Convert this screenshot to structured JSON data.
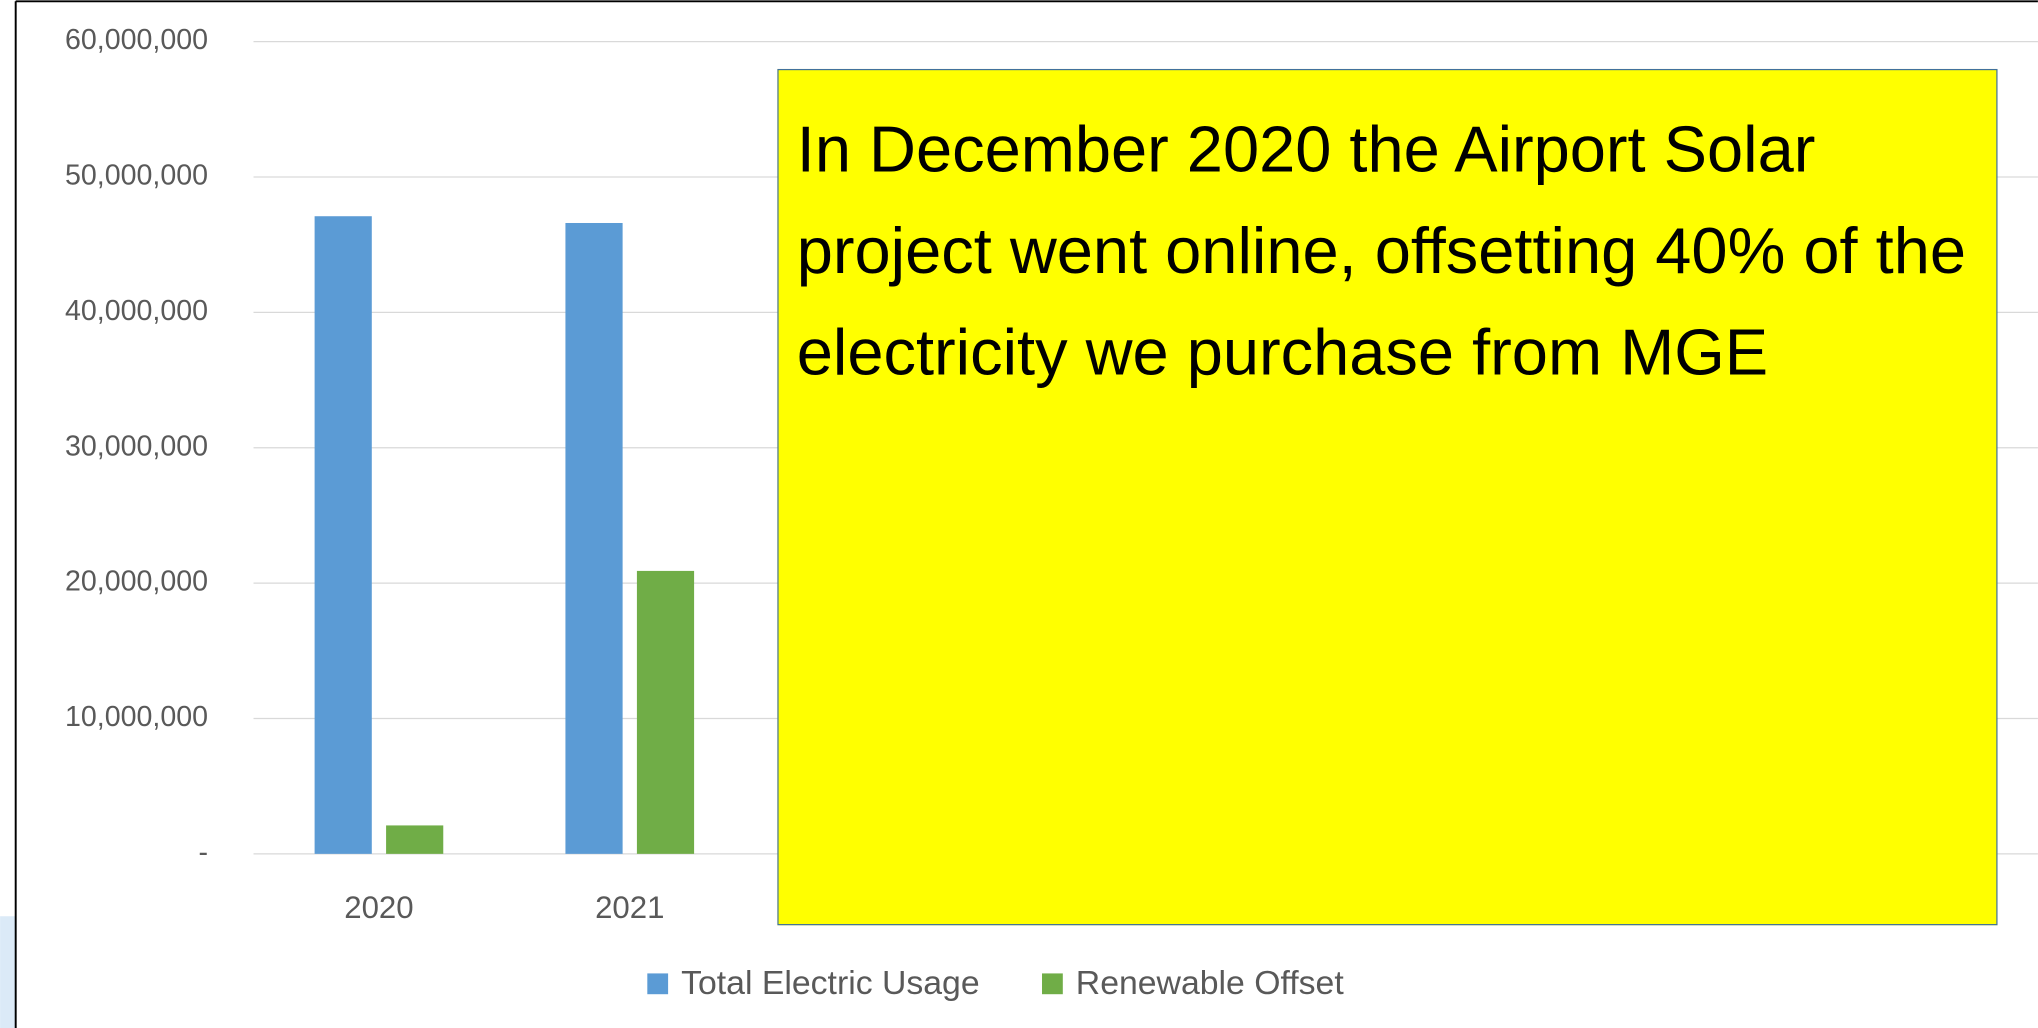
{
  "chart_data": {
    "type": "bar",
    "categories": [
      "2020",
      "2021"
    ],
    "series": [
      {
        "name": "Total Electric Usage",
        "color": "#5b9bd5",
        "values": [
          47100000,
          46600000
        ]
      },
      {
        "name": "Renewable Offset",
        "color": "#70ad47",
        "values": [
          2100000,
          20900000
        ]
      }
    ],
    "ylim": [
      0,
      60000000
    ],
    "yticks": [
      {
        "value": 0,
        "label": "-"
      },
      {
        "value": 10000000,
        "label": "10,000,000"
      },
      {
        "value": 20000000,
        "label": "20,000,000"
      },
      {
        "value": 30000000,
        "label": "30,000,000"
      },
      {
        "value": 40000000,
        "label": "40,000,000"
      },
      {
        "value": 50000000,
        "label": "50,000,000"
      },
      {
        "value": 60000000,
        "label": "60,000,000"
      }
    ],
    "grid": true,
    "legend": "bottom",
    "annotation": "In December 2020 the Airport Solar project went online, offsetting 40% of the electricity we purchase from MGE"
  }
}
